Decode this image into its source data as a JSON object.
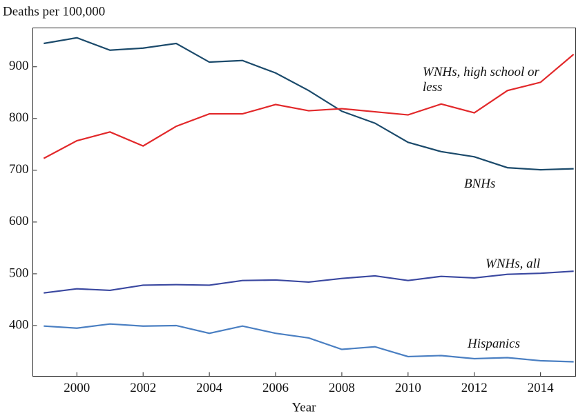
{
  "chart_data": {
    "type": "line",
    "title": "Deaths per 100,000",
    "x_label": "Year",
    "x": [
      1999,
      2000,
      2001,
      2002,
      2003,
      2004,
      2005,
      2006,
      2007,
      2008,
      2009,
      2010,
      2011,
      2012,
      2013,
      2014,
      2015
    ],
    "series": [
      {
        "name": "BNHs",
        "color": "#1b4a6b",
        "values": [
          945,
          956,
          932,
          936,
          945,
          909,
          912,
          888,
          854,
          814,
          791,
          754,
          736,
          726,
          705,
          701,
          703
        ]
      },
      {
        "name": "WNHs, high school or less",
        "color": "#e2282a",
        "values": [
          723,
          757,
          774,
          747,
          785,
          809,
          809,
          827,
          815,
          819,
          813,
          807,
          828,
          811,
          854,
          870,
          924
        ]
      },
      {
        "name": "WNHs, all",
        "color": "#3a48a0",
        "values": [
          463,
          471,
          468,
          478,
          479,
          478,
          487,
          488,
          484,
          491,
          496,
          487,
          495,
          492,
          499,
          501,
          505
        ]
      },
      {
        "name": "Hispanics",
        "color": "#4a7fc2",
        "values": [
          399,
          395,
          403,
          399,
          400,
          385,
          399,
          385,
          376,
          354,
          359,
          340,
          342,
          336,
          338,
          332,
          330
        ]
      }
    ],
    "xlim": [
      1998.67,
      2015.06
    ],
    "xticks": [
      2000,
      2002,
      2004,
      2006,
      2008,
      2010,
      2012,
      2014
    ],
    "ylim": [
      302,
      975
    ],
    "yticks": [
      400,
      500,
      600,
      700,
      800,
      900
    ],
    "grid": false
  }
}
